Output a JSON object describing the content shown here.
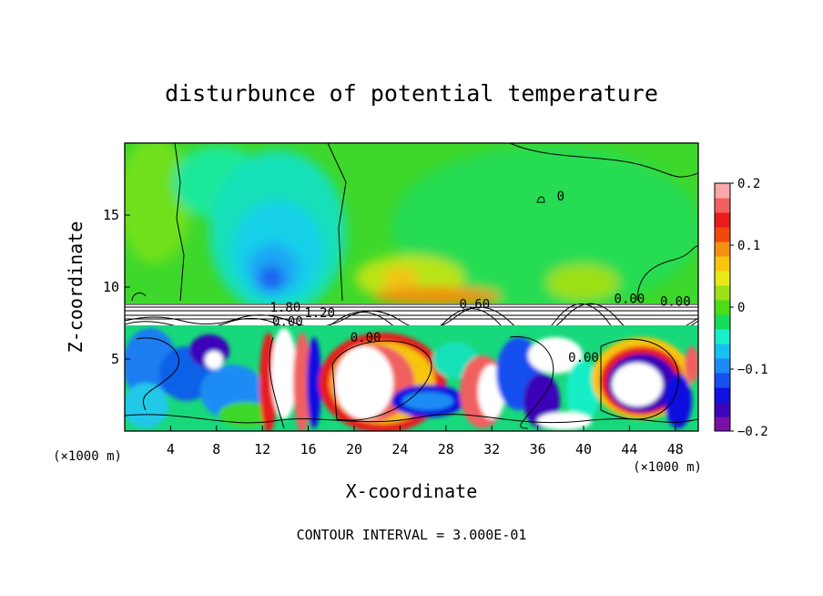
{
  "chart_data": {
    "type": "heatmap",
    "title": "disturbunce of potential temperature",
    "xlabel": "X-coordinate",
    "ylabel": "Z-coordinate",
    "x_unit": "(×1000 m)",
    "z_unit": "(×1000 m)",
    "xlim": [
      0,
      50
    ],
    "ylim": [
      0,
      20
    ],
    "x_ticks": [
      4,
      8,
      12,
      16,
      20,
      24,
      28,
      32,
      36,
      40,
      44,
      48
    ],
    "y_ticks": [
      5,
      10,
      15
    ],
    "colorbar": {
      "range": [
        -0.2,
        0.2
      ],
      "tick_values": [
        0.2,
        0.1,
        0,
        -0.1,
        -0.2
      ],
      "tick_labels": [
        "0.2",
        "0.1",
        "0",
        "−0.1",
        "−0.2"
      ],
      "colors": [
        "#7a10a8",
        "#3a06b8",
        "#1010e0",
        "#1850f0",
        "#1a8cf4",
        "#18c0f0",
        "#18eec8",
        "#16dc5a",
        "#4cdc18",
        "#9ce018",
        "#e6e81a",
        "#f8c410",
        "#f49010",
        "#f04810",
        "#e81c1c",
        "#f06060",
        "#f8a8a8"
      ]
    },
    "contour_labels": [
      "0.00",
      "0.60",
      "1.80",
      "1.20",
      "0.00",
      "0.00",
      "0.00",
      "0",
      "0.00"
    ],
    "contour_interval": "CONTOUR INTERVAL = 3.000E-01",
    "field": {
      "top_layer": "mostly ~0 to +0.02 (green) with a negative anomaly (cyan/blue, ~-0.1) centred near x=14, z=10-18 and a weak positive anomaly (yellow) near x=24-28, z=10-12",
      "stable_band": "white (values above 0.2) near z=7-9 with contour labels",
      "lower_layer": "strong mixed anomalies between -0.2 and +0.2 below z=7"
    }
  }
}
